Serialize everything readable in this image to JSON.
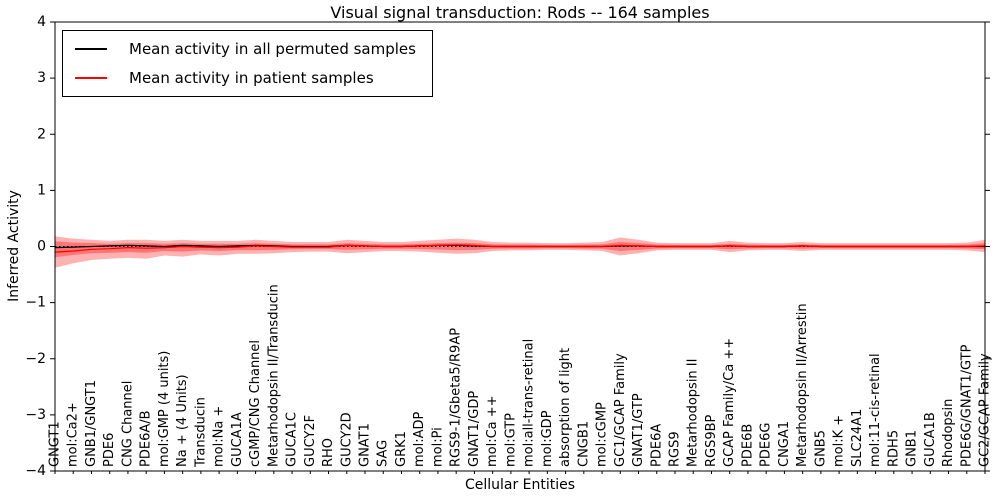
{
  "title": "Visual signal transduction: Rods -- 164 samples",
  "legend": {
    "items": [
      {
        "label": "Mean activity in all permuted samples",
        "color": "#000000"
      },
      {
        "label": "Mean activity in patient samples",
        "color": "#ff0000"
      }
    ]
  },
  "chart_data": {
    "type": "line",
    "title": "Visual signal transduction: Rods -- 164 samples",
    "xlabel": "Cellular Entities",
    "ylabel": "Inferred Activity",
    "ylim": [
      -4,
      4
    ],
    "yticks": [
      -4,
      -3,
      -2,
      -1,
      0,
      1,
      2,
      3,
      4
    ],
    "grid": false,
    "legend_position": "upper left",
    "zero_line": {
      "y": 0,
      "style": "dotted",
      "color": "#000000"
    },
    "band_color": "#ff0000",
    "band_outer_alpha": 0.3,
    "band_inner_alpha": 0.35,
    "band_inner_scale": 0.5,
    "categories": [
      "GNGT1",
      "mol:Ca2+",
      "GNB1/GNGT1",
      "PDE6",
      "CNG Channel",
      "PDE6A/B",
      "mol:GMP (4 units)",
      "Na + (4 Units)",
      "Transducin",
      "mol:Na +",
      "GUCA1A",
      "cGMP/CNG Channel",
      "Metarhodopsin II/Transducin",
      "GUCA1C",
      "GUCY2F",
      "RHO",
      "GUCY2D",
      "GNAT1",
      "SAG",
      "GRK1",
      "mol:ADP",
      "mol:Pi",
      "RGS9-1/Gbeta5/R9AP",
      "GNAT1/GDP",
      "mol:Ca ++",
      "mol:GTP",
      "mol:all-trans-retinal",
      "mol:GDP",
      "absorption of light",
      "CNGB1",
      "mol:cGMP",
      "GC1/GCAP Family",
      "GNAT1/GTP",
      "PDE6A",
      "RGS9",
      "Metarhodopsin II",
      "RGS9BP",
      "GCAP Family/Ca ++",
      "PDE6B",
      "PDE6G",
      "CNGA1",
      "Metarhodopsin II/Arrestin",
      "GNB5",
      "mol:K +",
      "SLC24A1",
      "mol:11-cis-retinal",
      "RDH5",
      "GNB1",
      "GUCA1B",
      "Rhodopsin",
      "PDE6G/GNAT1/GTP",
      "GC2/GCAP Family"
    ],
    "series": [
      {
        "name": "Mean activity in all permuted samples",
        "color": "#000000",
        "values": [
          -0.02,
          -0.01,
          0,
          0.01,
          0.02,
          0.01,
          0,
          0.02,
          0.01,
          0,
          0.01,
          0.02,
          0.01,
          0,
          0,
          0,
          0.02,
          0.01,
          0,
          0,
          0.01,
          0.02,
          0.02,
          0.01,
          0,
          0,
          0,
          0,
          0,
          0,
          0,
          0.01,
          0.01,
          0,
          0,
          0,
          0,
          0.01,
          0,
          0,
          0,
          0.01,
          0,
          0,
          0,
          0,
          0,
          0,
          0,
          0,
          0,
          0
        ]
      },
      {
        "name": "Mean activity in patient samples",
        "color": "#ff0000",
        "values": [
          -0.1,
          -0.08,
          -0.05,
          -0.04,
          -0.02,
          -0.03,
          -0.02,
          0,
          -0.01,
          -0.02,
          -0.01,
          0.01,
          0,
          -0.01,
          -0.01,
          -0.01,
          0.02,
          0.01,
          0,
          0,
          0.01,
          0.02,
          0.03,
          0.02,
          0,
          0,
          0,
          0,
          0,
          0,
          0,
          0.02,
          0.01,
          0,
          0,
          0,
          0,
          0.01,
          0,
          0,
          0,
          0.01,
          0,
          0,
          0,
          0,
          0,
          0,
          0,
          0,
          0,
          0.01
        ]
      }
    ],
    "band_upper": [
      0.18,
      0.14,
      0.12,
      0.1,
      0.12,
      0.12,
      0.1,
      0.12,
      0.1,
      0.1,
      0.1,
      0.12,
      0.1,
      0.08,
      0.08,
      0.08,
      0.12,
      0.1,
      0.08,
      0.08,
      0.1,
      0.12,
      0.14,
      0.12,
      0.08,
      0.07,
      0.07,
      0.06,
      0.06,
      0.07,
      0.08,
      0.16,
      0.12,
      0.07,
      0.06,
      0.06,
      0.06,
      0.1,
      0.07,
      0.06,
      0.06,
      0.08,
      0.06,
      0.06,
      0.06,
      0.06,
      0.06,
      0.06,
      0.06,
      0.06,
      0.07,
      0.12
    ],
    "band_lower": [
      -0.38,
      -0.3,
      -0.24,
      -0.22,
      -0.2,
      -0.22,
      -0.16,
      -0.18,
      -0.14,
      -0.16,
      -0.13,
      -0.13,
      -0.12,
      -0.1,
      -0.09,
      -0.09,
      -0.12,
      -0.1,
      -0.08,
      -0.08,
      -0.09,
      -0.11,
      -0.13,
      -0.12,
      -0.08,
      -0.07,
      -0.07,
      -0.06,
      -0.06,
      -0.07,
      -0.08,
      -0.16,
      -0.12,
      -0.07,
      -0.06,
      -0.06,
      -0.06,
      -0.1,
      -0.07,
      -0.06,
      -0.06,
      -0.08,
      -0.06,
      -0.06,
      -0.06,
      -0.06,
      -0.06,
      -0.06,
      -0.06,
      -0.06,
      -0.07,
      -0.1
    ]
  }
}
